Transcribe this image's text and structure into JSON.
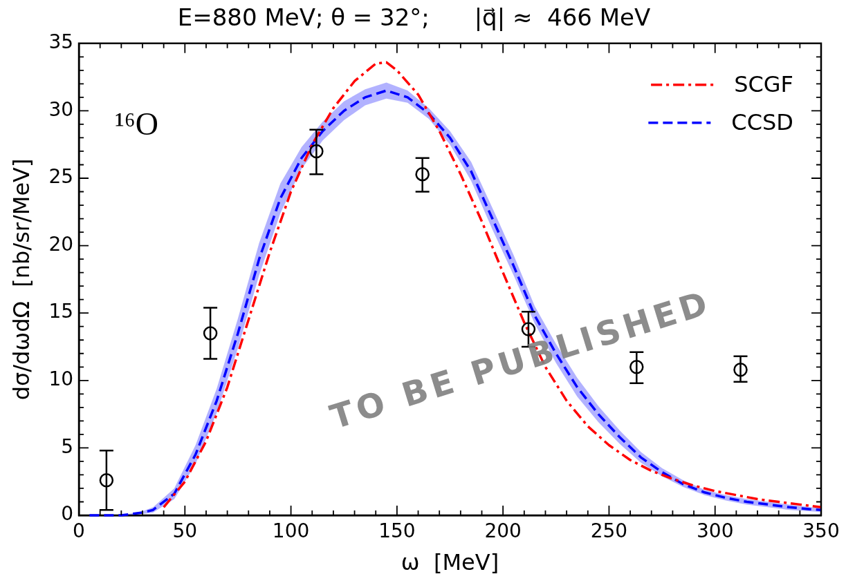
{
  "chart_data": {
    "type": "line",
    "title": "E=880 MeV; θ = 32°;      |q⃗| ≈  466 MeV",
    "xlabel": "ω  [MeV]",
    "ylabel": "dσ/dωdΩ  [nb/sr/MeV]",
    "xlim": [
      0,
      350
    ],
    "xticks": [
      0,
      50,
      100,
      150,
      200,
      250,
      300,
      350
    ],
    "ylim": [
      0,
      35
    ],
    "yticks": [
      0,
      5,
      10,
      15,
      20,
      25,
      30,
      35
    ],
    "grid": false,
    "legend": "top right",
    "annotations": [
      "¹⁶O",
      "TO BE PUBLISHED"
    ],
    "series": [
      {
        "name": "SCGF",
        "type": "line",
        "color": "#ff0000",
        "line_style": "dashdot",
        "x": [
          40,
          50,
          60,
          70,
          80,
          90,
          100,
          110,
          120,
          130,
          140,
          145,
          150,
          160,
          170,
          180,
          190,
          200,
          210,
          220,
          230,
          240,
          250,
          260,
          270,
          280,
          290,
          300,
          310,
          320,
          330,
          340,
          350
        ],
        "values": [
          0.6,
          2.5,
          5.5,
          9.5,
          14.5,
          19.5,
          24,
          27.5,
          30.2,
          32.2,
          33.5,
          33.6,
          33,
          31.2,
          28.5,
          25.3,
          21.8,
          18,
          14.3,
          11,
          8.5,
          6.6,
          5.2,
          4.1,
          3.3,
          2.7,
          2.2,
          1.8,
          1.5,
          1.2,
          1,
          0.8,
          0.6
        ]
      },
      {
        "name": "CCSD",
        "type": "line",
        "color": "#0000ff",
        "line_style": "dashed",
        "x": [
          5,
          20,
          30,
          35,
          45,
          55,
          65,
          75,
          85,
          95,
          105,
          115,
          125,
          135,
          145,
          155,
          165,
          175,
          185,
          195,
          205,
          215,
          225,
          235,
          245,
          255,
          265,
          275,
          285,
          295,
          305,
          315,
          325,
          335,
          345,
          350
        ],
        "values": [
          0,
          0,
          0.2,
          0.4,
          1.6,
          4.5,
          8.5,
          13.5,
          19,
          23.5,
          26.5,
          28.5,
          30,
          31,
          31.5,
          31,
          29.8,
          28,
          25.5,
          22,
          18.5,
          14.8,
          12,
          9.5,
          7.5,
          5.8,
          4.3,
          3.2,
          2.3,
          1.7,
          1.3,
          1,
          0.8,
          0.6,
          0.45,
          0.4
        ],
        "lower": [
          0,
          0,
          0.1,
          0.2,
          1.2,
          3.8,
          7.6,
          12.4,
          17.8,
          22.4,
          25.7,
          27.8,
          29.3,
          30.4,
          30.9,
          30.6,
          29.4,
          27.5,
          24.8,
          21.2,
          17.8,
          14.2,
          11.3,
          8.8,
          6.9,
          5.3,
          3.9,
          2.9,
          2.1,
          1.5,
          1.1,
          0.8,
          0.6,
          0.4,
          0.3,
          0.25
        ],
        "upper": [
          0,
          0,
          0.3,
          0.6,
          2,
          5.2,
          9.4,
          14.6,
          20.2,
          24.6,
          27.3,
          29.2,
          30.7,
          31.6,
          32.1,
          31.5,
          30.2,
          28.5,
          26.2,
          22.8,
          19.3,
          15.5,
          12.7,
          10.2,
          8.1,
          6.3,
          4.7,
          3.5,
          2.6,
          1.9,
          1.5,
          1.2,
          1,
          0.8,
          0.6,
          0.55
        ]
      },
      {
        "type": "scatter",
        "color": "#000000",
        "marker": "circle",
        "x": [
          13,
          62,
          112,
          162,
          212,
          263,
          312
        ],
        "values": [
          2.6,
          13.5,
          27,
          25.3,
          13.8,
          11,
          10.8
        ],
        "errors": [
          [
            0.4,
            4.8
          ],
          [
            11.6,
            15.4
          ],
          [
            25.3,
            28.6
          ],
          [
            24,
            26.5
          ],
          [
            12.5,
            15.1
          ],
          [
            9.8,
            12.1
          ],
          [
            9.9,
            11.8
          ]
        ]
      }
    ]
  }
}
